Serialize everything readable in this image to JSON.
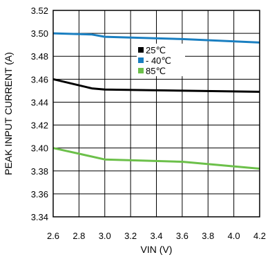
{
  "chart_data": {
    "type": "line",
    "xlabel": "VIN (V)",
    "ylabel": "PEAK INPUT CURRENT (A)",
    "xlim": [
      2.6,
      4.2
    ],
    "ylim": [
      3.34,
      3.52
    ],
    "xticks": [
      "2.6",
      "2.8",
      "3.0",
      "3.2",
      "3.4",
      "3.6",
      "3.8",
      "4.0",
      "4.2"
    ],
    "yticks": [
      "3.34",
      "3.36",
      "3.38",
      "3.40",
      "3.42",
      "3.44",
      "3.46",
      "3.48",
      "3.50",
      "3.52"
    ],
    "grid": true,
    "legend_position": "center",
    "series": [
      {
        "name": "25℃",
        "color": "#000000",
        "x": [
          2.6,
          2.9,
          3.0,
          3.6,
          4.2
        ],
        "y": [
          3.46,
          3.452,
          3.451,
          3.45,
          3.449
        ]
      },
      {
        "name": "- 40℃",
        "color": "#1a7fc1",
        "x": [
          2.6,
          2.9,
          3.0,
          3.6,
          4.2
        ],
        "y": [
          3.5,
          3.499,
          3.497,
          3.495,
          3.492
        ]
      },
      {
        "name": "85℃",
        "color": "#6cc04a",
        "x": [
          2.6,
          2.8,
          3.0,
          3.6,
          4.2
        ],
        "y": [
          3.4,
          3.395,
          3.39,
          3.388,
          3.382
        ]
      }
    ]
  }
}
